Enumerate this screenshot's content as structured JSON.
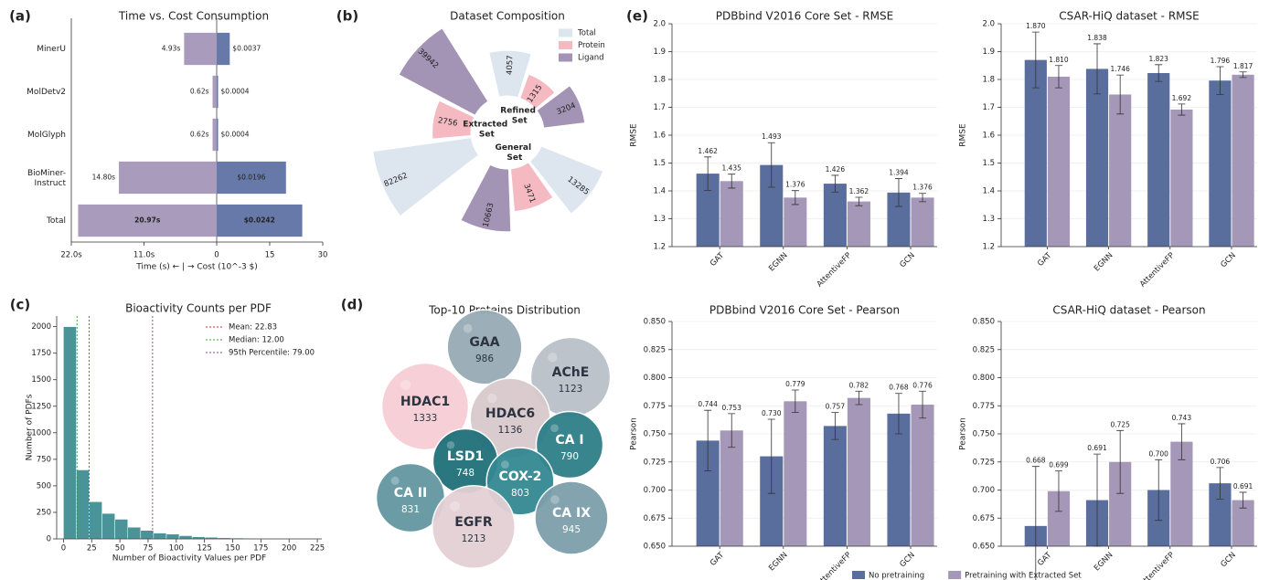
{
  "chart_data": [
    {
      "type": "diverging_bar",
      "panel_label": "(a)",
      "title": "Time vs. Cost Consumption",
      "xlabel": "Time (s) ← | → Cost (10^-3 $)",
      "categories": [
        "MinerU",
        "MolDetv2",
        "MolGlyph",
        "BioMiner-Instruct",
        "Total"
      ],
      "series": [
        {
          "color": "#a99bbc",
          "values": [
            4.93,
            0.62,
            0.62,
            14.8,
            20.97
          ],
          "value_labels": [
            "4.93s",
            "0.62s",
            "0.62s",
            "14.80s",
            "20.97s"
          ],
          "xlim": [
            0,
            22
          ],
          "xticks": [
            {
              "value": 22,
              "label": "22.0s"
            },
            {
              "value": 11,
              "label": "11.0s"
            },
            0
          ]
        },
        {
          "color": "#6779a8",
          "values": [
            3.7,
            0.4,
            0.4,
            19.6,
            24.2
          ],
          "value_labels": [
            "$0.0037",
            "$0.0004",
            "$0.0004",
            "$0.0196",
            "$0.0242"
          ],
          "xlim": [
            0,
            30
          ],
          "xticks": [
            15,
            30
          ]
        }
      ]
    },
    {
      "type": "polar_bar",
      "panel_label": "(b)",
      "title": "Dataset Composition",
      "radial_scale": "log",
      "legend": "upper right",
      "categories": [
        "Refined Set",
        "General Set",
        "Extracted Set"
      ],
      "series": [
        {
          "name": "Total",
          "color": "#dde5ef",
          "values": [
            4057,
            13285,
            82262
          ]
        },
        {
          "name": "Protein",
          "color": "#f4b9c1",
          "values": [
            1315,
            3471,
            2756
          ]
        },
        {
          "name": "Ligand",
          "color": "#a393b5",
          "values": [
            3204,
            10663,
            39942
          ]
        }
      ]
    },
    {
      "type": "histogram",
      "panel_label": "(c)",
      "title": "Bioactivity Counts per PDF",
      "xlabel": "Number of Bioactivity Values per PDF",
      "ylabel": "Number of PDFs",
      "color": "#4a9399",
      "bins": [
        0,
        11.4,
        22.8,
        34.2,
        45.6,
        57,
        68.4,
        79.8,
        91.2,
        102.6,
        114,
        125.4,
        136.8,
        148.2,
        159.6,
        171,
        182.4,
        193.8,
        205.2,
        216.6,
        228
      ],
      "values": [
        2000,
        650,
        350,
        240,
        185,
        110,
        80,
        55,
        45,
        30,
        20,
        15,
        10,
        8,
        5,
        4,
        3,
        2,
        1,
        1
      ],
      "xlim": [
        -6,
        229
      ],
      "ylim": [
        0,
        2100
      ],
      "xticks": [
        0,
        25,
        50,
        75,
        100,
        125,
        150,
        175,
        200,
        225
      ],
      "yticks": [
        0,
        250,
        500,
        750,
        1000,
        1250,
        1500,
        1750,
        2000
      ],
      "legend": "upper right",
      "vlines": [
        {
          "name": "Mean: 22.83",
          "value": 22.83,
          "color": "#d62728"
        },
        {
          "name": "Median: 12.00",
          "value": 12,
          "color": "#2ca02c"
        },
        {
          "name": "95th Percentile: 79.00",
          "value": 79,
          "color": "#8e3b9a"
        }
      ]
    },
    {
      "type": "bubble",
      "panel_label": "(d)",
      "title": "Top-10 Proteins Distribution",
      "categories": [
        "GAA",
        "AChE",
        "HDAC1",
        "HDAC6",
        "CA I",
        "LSD1",
        "COX-2",
        "CA II",
        "EGFR",
        "CA IX"
      ],
      "values": [
        986,
        1123,
        1333,
        1136,
        790,
        748,
        803,
        831,
        1213,
        945
      ],
      "colors": [
        "#97abb5",
        "#b9c0c8",
        "#f6ced4",
        "#d9c9cd",
        "#2e7f89",
        "#20707a",
        "#338892",
        "#6497a2",
        "#e4d0d5",
        "#7d9fab"
      ]
    },
    {
      "type": "grouped_bar",
      "panel_label": "(e)",
      "title": "PDBbind V2016 Core Set - RMSE",
      "ylabel": "RMSE",
      "grid": true,
      "categories": [
        "GAT",
        "EGNN",
        "AttentiveFP",
        "GCN"
      ],
      "ylim": [
        1.2,
        2.0
      ],
      "yticks": [
        1.2,
        1.3,
        1.4,
        1.5,
        1.6,
        1.7,
        1.8,
        1.9,
        {
          "value": 2,
          "label": "2.0"
        }
      ],
      "series": [
        {
          "color": "#5a6e9e",
          "values": [
            1.462,
            1.493,
            1.426,
            1.394
          ],
          "errors": [
            0.06,
            0.08,
            0.03,
            0.05
          ],
          "value_labels": [
            "1.462",
            "1.493",
            "1.426",
            "1.394"
          ]
        },
        {
          "color": "#a597b8",
          "values": [
            1.435,
            1.376,
            1.362,
            1.376
          ],
          "errors": [
            0.025,
            0.025,
            0.015,
            0.015
          ],
          "value_labels": [
            "1.435",
            "1.376",
            "1.362",
            "1.376"
          ]
        }
      ]
    },
    {
      "type": "grouped_bar",
      "title": "CSAR-HiQ dataset - RMSE",
      "ylabel": "RMSE",
      "grid": true,
      "categories": [
        "GAT",
        "EGNN",
        "AttentiveFP",
        "GCN"
      ],
      "ylim": [
        1.2,
        2.0
      ],
      "yticks": [
        1.2,
        1.3,
        1.4,
        1.5,
        1.6,
        1.7,
        1.8,
        1.9,
        {
          "value": 2,
          "label": "2.0"
        }
      ],
      "series": [
        {
          "color": "#5a6e9e",
          "values": [
            1.87,
            1.838,
            1.823,
            1.796
          ],
          "errors": [
            0.1,
            0.09,
            0.03,
            0.05
          ],
          "value_labels": [
            "1.870",
            "1.838",
            "1.823",
            "1.796"
          ]
        },
        {
          "color": "#a597b8",
          "values": [
            1.81,
            1.746,
            1.692,
            1.817
          ],
          "errors": [
            0.04,
            0.07,
            0.02,
            0.01
          ],
          "value_labels": [
            "1.810",
            "1.746",
            "1.692",
            "1.817"
          ]
        }
      ]
    },
    {
      "type": "grouped_bar",
      "title": "PDBbind V2016 Core Set - Pearson",
      "ylabel": "Pearson",
      "grid": true,
      "categories": [
        "GAT",
        "EGNN",
        "AttentiveFP",
        "GCN"
      ],
      "ylim": [
        0.65,
        0.85
      ],
      "yticks": [
        {
          "value": 0.65,
          "label": "0.650"
        },
        0.675,
        {
          "value": 0.7,
          "label": "0.700"
        },
        0.725,
        {
          "value": 0.75,
          "label": "0.750"
        },
        0.775,
        {
          "value": 0.8,
          "label": "0.800"
        },
        0.825,
        {
          "value": 0.85,
          "label": "0.850"
        }
      ],
      "series": [
        {
          "color": "#5a6e9e",
          "values": [
            0.744,
            0.73,
            0.757,
            0.768
          ],
          "errors": [
            0.027,
            0.033,
            0.012,
            0.018
          ],
          "value_labels": [
            "0.744",
            "0.730",
            "0.757",
            "0.768"
          ]
        },
        {
          "color": "#a597b8",
          "values": [
            0.753,
            0.779,
            0.782,
            0.776
          ],
          "errors": [
            0.015,
            0.01,
            0.006,
            0.012
          ],
          "value_labels": [
            "0.753",
            "0.779",
            "0.782",
            "0.776"
          ]
        }
      ]
    },
    {
      "type": "grouped_bar",
      "title": "CSAR-HiQ dataset - Pearson",
      "ylabel": "Pearson",
      "grid": true,
      "legend": "lower center",
      "categories": [
        "GAT",
        "EGNN",
        "AttentiveFP",
        "GCN"
      ],
      "ylim": [
        0.65,
        0.85
      ],
      "yticks": [
        {
          "value": 0.65,
          "label": "0.650"
        },
        0.675,
        {
          "value": 0.7,
          "label": "0.700"
        },
        0.725,
        {
          "value": 0.75,
          "label": "0.750"
        },
        0.775,
        {
          "value": 0.8,
          "label": "0.800"
        },
        0.825,
        {
          "value": 0.85,
          "label": "0.850"
        }
      ],
      "series": [
        {
          "name": "No pretraining",
          "color": "#5a6e9e",
          "values": [
            0.668,
            0.691,
            0.7,
            0.706
          ],
          "errors": [
            0.053,
            0.041,
            0.027,
            0.014
          ],
          "value_labels": [
            "0.668",
            "0.691",
            "0.700",
            "0.706"
          ]
        },
        {
          "name": "Pretraining with Extracted Set",
          "color": "#a597b8",
          "values": [
            0.699,
            0.725,
            0.743,
            0.691
          ],
          "errors": [
            0.018,
            0.028,
            0.016,
            0.007
          ],
          "value_labels": [
            "0.699",
            "0.725",
            "0.743",
            "0.691"
          ]
        }
      ]
    }
  ]
}
